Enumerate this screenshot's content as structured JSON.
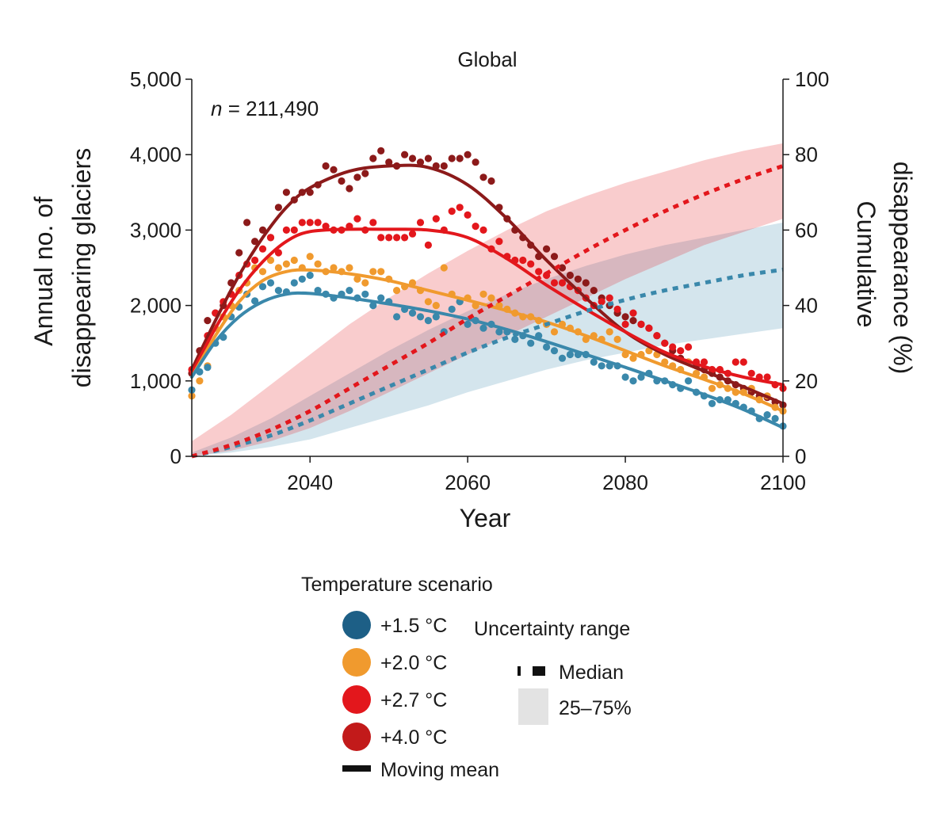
{
  "chart_data": {
    "type": "scatter",
    "title": "Global",
    "annotation": {
      "prefix": "n",
      "text": " = 211,490"
    },
    "xlabel": "Year",
    "ylabel_left": [
      "Annual no. of",
      "disappearing glaciers"
    ],
    "ylabel_right": [
      "Cumulative",
      "disappearance (%)"
    ],
    "xlim": [
      2025,
      2100
    ],
    "ylim_left": [
      0,
      5000
    ],
    "ylim_right": [
      0,
      100
    ],
    "x_ticks": [
      2040,
      2060,
      2080,
      2100
    ],
    "x_tick_labels": [
      "2040",
      "2060",
      "2080",
      "2100"
    ],
    "y_left_ticks": [
      0,
      1000,
      2000,
      3000,
      4000,
      5000
    ],
    "y_left_tick_labels": [
      "0",
      "1,000",
      "2,000",
      "3,000",
      "4,000",
      "5,000"
    ],
    "y_right_ticks": [
      0,
      20,
      40,
      60,
      80,
      100
    ],
    "y_right_tick_labels": [
      "0",
      "20",
      "40",
      "60",
      "80",
      "100"
    ],
    "grid": false,
    "series": [
      {
        "name": "+1.5 °C",
        "color": "#3a88ab",
        "legend_color": "#1d5f86",
        "moving_mean": {
          "x": [
            2025,
            2028,
            2031,
            2034,
            2037,
            2040,
            2045,
            2050,
            2055,
            2060,
            2065,
            2070,
            2075,
            2080,
            2085,
            2090,
            2095,
            2100
          ],
          "y": [
            1050,
            1520,
            1850,
            2050,
            2150,
            2160,
            2100,
            2020,
            1930,
            1820,
            1680,
            1520,
            1350,
            1180,
            1000,
            820,
            620,
            380
          ]
        },
        "scatter": {
          "x": [
            2025,
            2026,
            2027,
            2028,
            2029,
            2030,
            2031,
            2032,
            2033,
            2034,
            2035,
            2036,
            2037,
            2038,
            2039,
            2040,
            2041,
            2042,
            2043,
            2044,
            2045,
            2046,
            2047,
            2048,
            2049,
            2050,
            2051,
            2052,
            2053,
            2054,
            2055,
            2056,
            2057,
            2058,
            2059,
            2060,
            2061,
            2062,
            2063,
            2064,
            2065,
            2066,
            2067,
            2068,
            2069,
            2070,
            2071,
            2072,
            2073,
            2074,
            2075,
            2076,
            2077,
            2078,
            2079,
            2080,
            2081,
            2082,
            2083,
            2084,
            2085,
            2086,
            2087,
            2088,
            2089,
            2090,
            2091,
            2092,
            2093,
            2094,
            2095,
            2096,
            2097,
            2098,
            2099,
            2100
          ],
          "y": [
            880,
            1120,
            1180,
            1500,
            1580,
            1850,
            1980,
            2150,
            2060,
            2250,
            2300,
            2200,
            2180,
            2300,
            2350,
            2400,
            2200,
            2150,
            2100,
            2150,
            2200,
            2100,
            2150,
            2000,
            2100,
            2050,
            1850,
            1950,
            1900,
            1850,
            1800,
            1850,
            1650,
            1950,
            2050,
            1750,
            1800,
            1700,
            1750,
            1650,
            1650,
            1550,
            1600,
            1500,
            1600,
            1450,
            1400,
            1300,
            1350,
            1350,
            1350,
            1250,
            1200,
            1200,
            1200,
            1050,
            1000,
            1050,
            1100,
            1000,
            1000,
            950,
            900,
            1000,
            850,
            800,
            700,
            750,
            750,
            700,
            650,
            600,
            500,
            550,
            500,
            400
          ]
        },
        "median": {
          "x": [
            2025,
            2030,
            2035,
            2040,
            2045,
            2050,
            2055,
            2060,
            2065,
            2070,
            2075,
            2080,
            2085,
            2090,
            2095,
            2100
          ],
          "y": [
            0,
            2.5,
            5.5,
            9.5,
            14,
            18.5,
            23,
            27.5,
            31.5,
            35,
            38.5,
            41.5,
            44,
            46,
            48,
            49.5
          ]
        },
        "band": {
          "x": [
            2025,
            2030,
            2035,
            2040,
            2045,
            2050,
            2055,
            2060,
            2065,
            2070,
            2075,
            2080,
            2085,
            2090,
            2095,
            2100
          ],
          "low": [
            0,
            1,
            2.5,
            4.5,
            7.5,
            10.5,
            13.5,
            17,
            20,
            23,
            25.5,
            27.5,
            29.5,
            31,
            32.5,
            34
          ],
          "high": [
            1,
            5,
            10,
            16,
            22,
            28,
            33.5,
            38.5,
            43,
            47,
            50.5,
            53.5,
            56,
            58,
            60,
            62
          ]
        }
      },
      {
        "name": "+2.0 °C",
        "color": "#f09a2e",
        "legend_color": "#f09a2e",
        "moving_mean": {
          "x": [
            2025,
            2028,
            2031,
            2034,
            2037,
            2040,
            2045,
            2050,
            2055,
            2060,
            2065,
            2070,
            2075,
            2080,
            2085,
            2090,
            2095,
            2100
          ],
          "y": [
            1050,
            1600,
            2050,
            2330,
            2450,
            2470,
            2420,
            2330,
            2200,
            2070,
            1930,
            1780,
            1600,
            1400,
            1200,
            1020,
            830,
            600
          ]
        },
        "scatter": {
          "x": [
            2025,
            2026,
            2027,
            2028,
            2029,
            2030,
            2031,
            2032,
            2033,
            2034,
            2035,
            2036,
            2037,
            2038,
            2039,
            2040,
            2041,
            2042,
            2043,
            2044,
            2045,
            2046,
            2047,
            2048,
            2049,
            2050,
            2051,
            2052,
            2053,
            2054,
            2055,
            2056,
            2057,
            2058,
            2059,
            2060,
            2061,
            2062,
            2063,
            2064,
            2065,
            2066,
            2067,
            2068,
            2069,
            2070,
            2071,
            2072,
            2073,
            2074,
            2075,
            2076,
            2077,
            2078,
            2079,
            2080,
            2081,
            2082,
            2083,
            2084,
            2085,
            2086,
            2087,
            2088,
            2089,
            2090,
            2091,
            2092,
            2093,
            2094,
            2095,
            2096,
            2097,
            2098,
            2099,
            2100
          ],
          "y": [
            800,
            1000,
            1200,
            1700,
            1850,
            2000,
            2200,
            2300,
            2500,
            2450,
            2600,
            2500,
            2550,
            2600,
            2500,
            2650,
            2550,
            2450,
            2500,
            2450,
            2500,
            2350,
            2300,
            2450,
            2450,
            2350,
            2200,
            2250,
            2300,
            2200,
            2050,
            2000,
            2500,
            2150,
            2050,
            2100,
            2000,
            2150,
            2100,
            2000,
            1950,
            1900,
            1850,
            1850,
            1800,
            1750,
            1650,
            1750,
            1700,
            1650,
            1550,
            1600,
            1550,
            1650,
            1550,
            1350,
            1300,
            1350,
            1400,
            1350,
            1250,
            1200,
            1150,
            1250,
            1100,
            1050,
            900,
            950,
            900,
            850,
            850,
            900,
            750,
            800,
            650,
            600
          ]
        },
        "median": null,
        "band": null
      },
      {
        "name": "+2.7 °C",
        "color": "#e3171c",
        "legend_color": "#e3171c",
        "moving_mean": {
          "x": [
            2025,
            2028,
            2031,
            2034,
            2037,
            2040,
            2045,
            2050,
            2055,
            2060,
            2065,
            2070,
            2075,
            2080,
            2085,
            2090,
            2095,
            2100
          ],
          "y": [
            1100,
            1700,
            2200,
            2580,
            2850,
            2980,
            3010,
            3010,
            3000,
            2900,
            2620,
            2270,
            1950,
            1650,
            1380,
            1190,
            1050,
            950
          ]
        },
        "scatter": {
          "x": [
            2025,
            2026,
            2027,
            2028,
            2029,
            2030,
            2031,
            2032,
            2033,
            2034,
            2035,
            2036,
            2037,
            2038,
            2039,
            2040,
            2041,
            2042,
            2043,
            2044,
            2045,
            2046,
            2047,
            2048,
            2049,
            2050,
            2051,
            2052,
            2053,
            2054,
            2055,
            2056,
            2057,
            2058,
            2059,
            2060,
            2061,
            2062,
            2063,
            2064,
            2065,
            2066,
            2067,
            2068,
            2069,
            2070,
            2071,
            2072,
            2073,
            2074,
            2075,
            2076,
            2077,
            2078,
            2079,
            2080,
            2081,
            2082,
            2083,
            2084,
            2085,
            2086,
            2087,
            2088,
            2089,
            2090,
            2091,
            2092,
            2093,
            2094,
            2095,
            2096,
            2097,
            2098,
            2099,
            2100
          ],
          "y": [
            1150,
            1300,
            1600,
            1900,
            2050,
            2150,
            2400,
            2550,
            2600,
            2750,
            2900,
            2700,
            3000,
            3000,
            3100,
            3100,
            3100,
            3050,
            3000,
            3000,
            3050,
            3150,
            3000,
            3100,
            2900,
            2900,
            2900,
            2900,
            2950,
            3100,
            2800,
            3150,
            3000,
            3250,
            3300,
            3200,
            3050,
            3000,
            2750,
            2850,
            2650,
            2600,
            2600,
            2550,
            2450,
            2400,
            2300,
            2300,
            2250,
            2200,
            2100,
            2000,
            2050,
            2100,
            1950,
            1750,
            1900,
            1750,
            1700,
            1600,
            1500,
            1450,
            1400,
            1450,
            1250,
            1250,
            1150,
            1150,
            1100,
            1250,
            1250,
            1100,
            1050,
            1050,
            950,
            900
          ]
        },
        "median": {
          "x": [
            2025,
            2030,
            2035,
            2040,
            2045,
            2050,
            2055,
            2060,
            2065,
            2070,
            2075,
            2080,
            2085,
            2090,
            2095,
            2100
          ],
          "y": [
            0,
            3,
            7,
            12,
            18,
            24,
            30,
            36.5,
            42.5,
            48.5,
            54.5,
            60,
            65,
            69.5,
            73.5,
            77
          ]
        },
        "band": {
          "x": [
            2025,
            2030,
            2035,
            2040,
            2045,
            2050,
            2055,
            2060,
            2065,
            2070,
            2075,
            2080,
            2085,
            2090,
            2095,
            2100
          ],
          "low": [
            0,
            1.5,
            4,
            7.5,
            12,
            17,
            22,
            27,
            32,
            37,
            42,
            47,
            51.5,
            56,
            59.5,
            63
          ],
          "high": [
            4,
            11,
            19,
            27,
            35,
            42,
            48.5,
            54.5,
            60,
            65,
            69,
            72.5,
            75.5,
            78.5,
            81,
            83
          ]
        }
      },
      {
        "name": "+4.0 °C",
        "color": "#8c1a1a",
        "legend_color": "#c21a1a",
        "moving_mean": {
          "x": [
            2025,
            2028,
            2031,
            2034,
            2037,
            2040,
            2045,
            2050,
            2055,
            2060,
            2065,
            2070,
            2075,
            2080,
            2085,
            2090,
            2095,
            2100
          ],
          "y": [
            1150,
            1800,
            2400,
            2900,
            3300,
            3560,
            3780,
            3850,
            3830,
            3600,
            3150,
            2600,
            2100,
            1650,
            1350,
            1130,
            920,
            700
          ]
        },
        "scatter": {
          "x": [
            2025,
            2026,
            2027,
            2028,
            2029,
            2030,
            2031,
            2032,
            2033,
            2034,
            2035,
            2036,
            2037,
            2038,
            2039,
            2040,
            2041,
            2042,
            2043,
            2044,
            2045,
            2046,
            2047,
            2048,
            2049,
            2050,
            2051,
            2052,
            2053,
            2054,
            2055,
            2056,
            2057,
            2058,
            2059,
            2060,
            2061,
            2062,
            2063,
            2064,
            2065,
            2066,
            2067,
            2068,
            2069,
            2070,
            2071,
            2072,
            2073,
            2074,
            2075,
            2076,
            2077,
            2078,
            2079,
            2080,
            2081,
            2082,
            2083,
            2084,
            2085,
            2086,
            2087,
            2088,
            2089,
            2090,
            2091,
            2092,
            2093,
            2094,
            2095,
            2096,
            2097,
            2098,
            2099,
            2100
          ],
          "y": [
            1100,
            1400,
            1800,
            1900,
            2000,
            2300,
            2700,
            3100,
            2850,
            3000,
            2900,
            3300,
            3500,
            3400,
            3500,
            3500,
            3600,
            3850,
            3800,
            3650,
            3550,
            3700,
            3750,
            3950,
            4050,
            3900,
            3850,
            4000,
            3950,
            3900,
            3950,
            3850,
            3850,
            3950,
            3950,
            4000,
            3900,
            3700,
            3650,
            3300,
            3150,
            3000,
            2900,
            2800,
            2650,
            2750,
            2650,
            2500,
            2400,
            2350,
            2300,
            2200,
            2100,
            2000,
            1900,
            1850,
            1800,
            1750,
            1700,
            1600,
            1500,
            1400,
            1300,
            1250,
            1200,
            1150,
            1100,
            1050,
            1000,
            950,
            900,
            850,
            800,
            780,
            720,
            680
          ]
        },
        "median": null,
        "band": null
      }
    ],
    "legend": {
      "scenario_title": "Temperature scenario",
      "uncertainty_title": "Uncertainty range",
      "moving_mean_label": "Moving mean",
      "median_label": "Median",
      "band_label": "25–75%"
    }
  }
}
